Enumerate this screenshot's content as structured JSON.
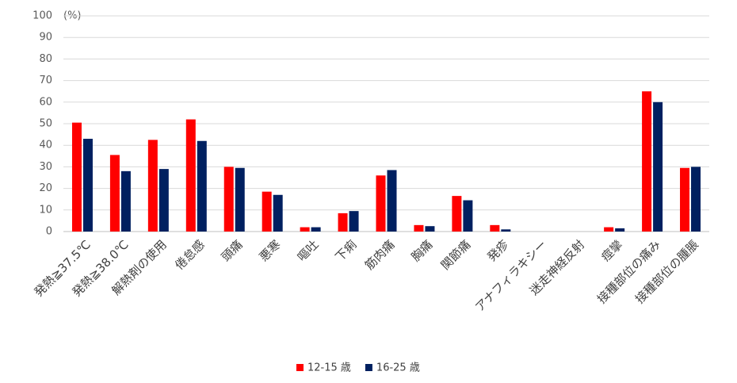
{
  "chart_data": {
    "type": "bar",
    "y_unit": "(%)",
    "categories": [
      "発熱≧37.5℃",
      "発熱≧38.0℃",
      "解熱剤の使用",
      "倦怠感",
      "頭痛",
      "悪寒",
      "嘔吐",
      "下痢",
      "筋肉痛",
      "胸痛",
      "関節痛",
      "発疹",
      "アナフィラキシー",
      "迷走神経反射",
      "痙攣",
      "接種部位の痛み",
      "接種部位の腫脹"
    ],
    "series": [
      {
        "name": "12-15 歳",
        "color": "#ff0000",
        "values": [
          50.5,
          35.5,
          42.5,
          52,
          30,
          18.5,
          2,
          8.5,
          26,
          3,
          16.5,
          3,
          0,
          0,
          2,
          65,
          29.5
        ]
      },
      {
        "name": "16-25 歳",
        "color": "#002060",
        "values": [
          43,
          28,
          29,
          42,
          29.5,
          17,
          2,
          9.5,
          28.5,
          2.5,
          14.5,
          1,
          0,
          0,
          1.5,
          60,
          30
        ]
      }
    ],
    "ylim": [
      0,
      100
    ],
    "yticks": [
      0,
      10,
      20,
      30,
      40,
      50,
      60,
      70,
      80,
      90,
      100
    ],
    "grid": true
  }
}
